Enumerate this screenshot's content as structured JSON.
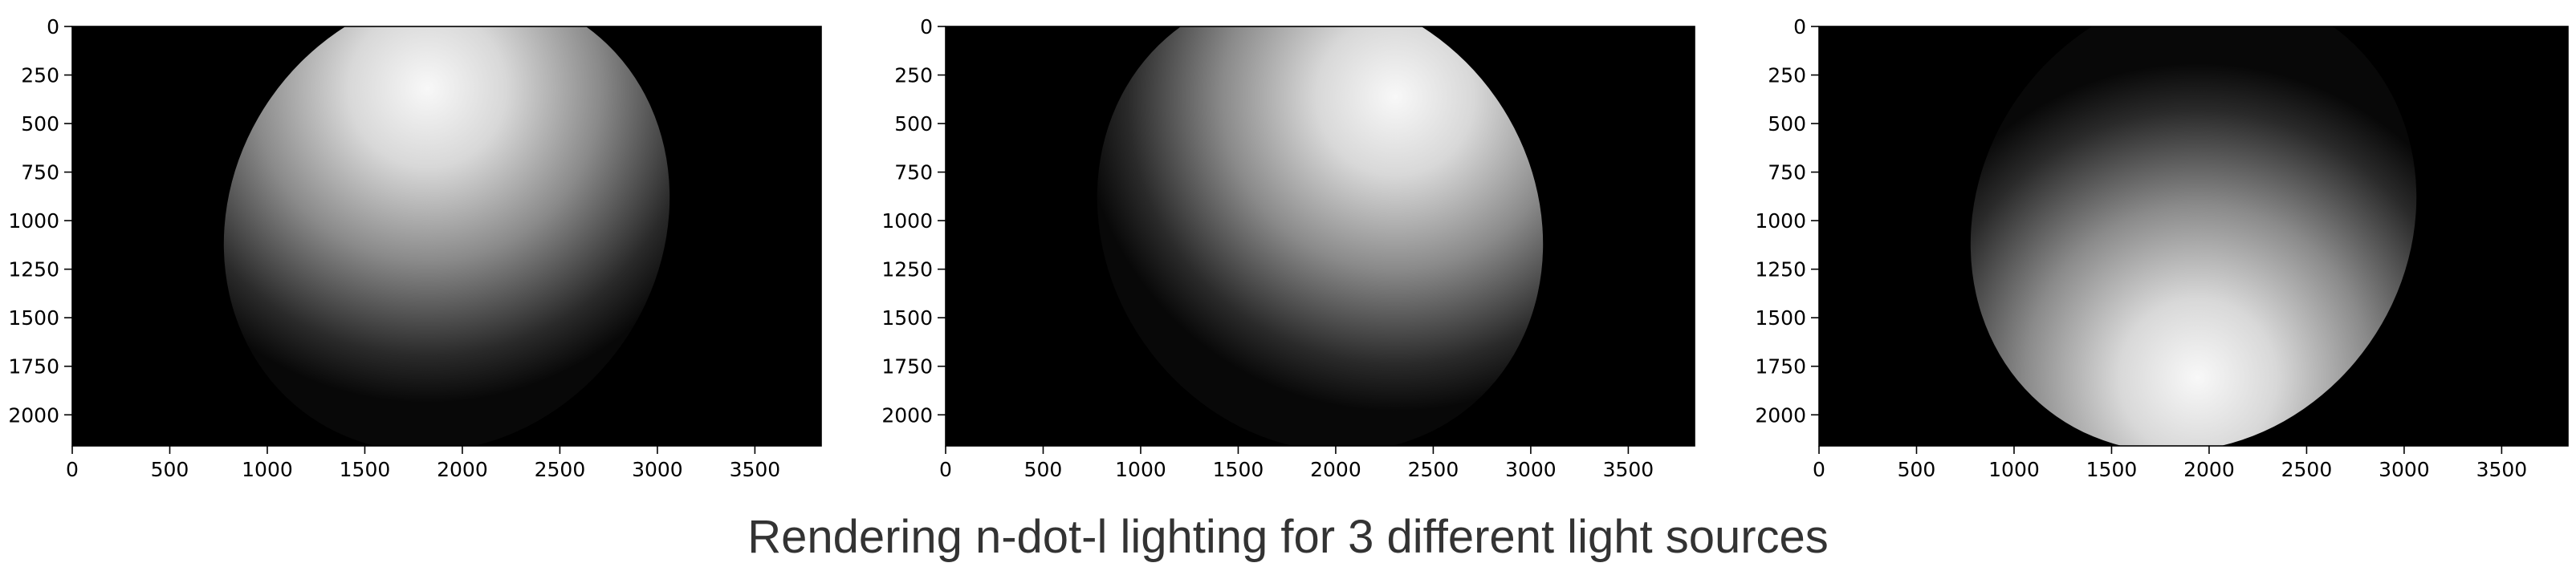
{
  "figure_title": "Rendering n-dot-l lighting for 3 different light sources",
  "chart_data": [
    {
      "type": "heatmap",
      "title": "",
      "xlabel": "",
      "ylabel": "",
      "xlim": [
        0,
        3840
      ],
      "ylim": [
        2160,
        0
      ],
      "x_ticks": [
        "0",
        "500",
        "1000",
        "1500",
        "2000",
        "2500",
        "3000",
        "3500"
      ],
      "y_ticks": [
        "0",
        "250",
        "500",
        "750",
        "1000",
        "1250",
        "1500",
        "1750",
        "2000"
      ],
      "colormap": "gray",
      "background": "#000000",
      "shape": {
        "kind": "ellipse",
        "center": [
          1920,
          1000
        ],
        "radii": [
          1100,
          1230
        ],
        "rotation_deg": 35
      },
      "highlight": [
        1450,
        500
      ],
      "grid": false
    },
    {
      "type": "heatmap",
      "title": "",
      "xlabel": "",
      "ylabel": "",
      "xlim": [
        0,
        3840
      ],
      "ylim": [
        2160,
        0
      ],
      "x_ticks": [
        "0",
        "500",
        "1000",
        "1500",
        "2000",
        "2500",
        "3000",
        "3500"
      ],
      "y_ticks": [
        "0",
        "250",
        "500",
        "750",
        "1000",
        "1250",
        "1500",
        "1750",
        "2000"
      ],
      "colormap": "gray",
      "background": "#000000",
      "shape": {
        "kind": "ellipse",
        "center": [
          1920,
          1000
        ],
        "radii": [
          1100,
          1230
        ],
        "rotation_deg": -35
      },
      "highlight": [
        2600,
        700
      ],
      "grid": false
    },
    {
      "type": "heatmap",
      "title": "",
      "xlabel": "",
      "ylabel": "",
      "xlim": [
        0,
        3840
      ],
      "ylim": [
        2160,
        0
      ],
      "x_ticks": [
        "0",
        "500",
        "1000",
        "1500",
        "2000",
        "2500",
        "3000",
        "3500"
      ],
      "y_ticks": [
        "0",
        "250",
        "500",
        "750",
        "1000",
        "1250",
        "1500",
        "1750",
        "2000"
      ],
      "colormap": "gray",
      "background": "#000000",
      "shape": {
        "kind": "ellipse",
        "center": [
          1920,
          1000
        ],
        "radii": [
          1100,
          1230
        ],
        "rotation_deg": 35
      },
      "highlight": [
        2400,
        1650
      ],
      "grid": false
    }
  ]
}
